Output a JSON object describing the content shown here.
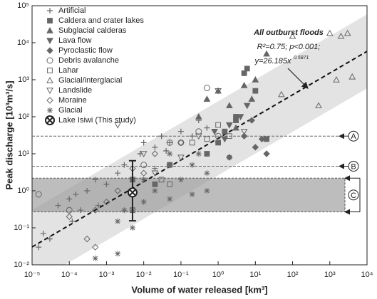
{
  "chart_data": {
    "type": "scatter",
    "log_x": true,
    "log_y": true,
    "x_label": "Volume of water released [km³]",
    "y_label": "Peak discharge [10³m³/s]",
    "xlim": [
      1e-05,
      10000
    ],
    "ylim": [
      0.01,
      100000
    ],
    "xticks": [
      {
        "value": 1e-05,
        "label": "10⁻⁵"
      },
      {
        "value": 0.0001,
        "label": "10⁻⁴"
      },
      {
        "value": 0.001,
        "label": "10⁻³"
      },
      {
        "value": 0.01,
        "label": "10⁻²"
      },
      {
        "value": 0.1,
        "label": "10⁻¹"
      },
      {
        "value": 1,
        "label": "10⁰"
      },
      {
        "value": 10,
        "label": "10¹"
      },
      {
        "value": 100,
        "label": "10²"
      },
      {
        "value": 1000,
        "label": "10³"
      },
      {
        "value": 10000,
        "label": "10⁴"
      }
    ],
    "yticks": [
      {
        "value": 0.01,
        "label": "10⁻²"
      },
      {
        "value": 0.1,
        "label": "10⁻¹"
      },
      {
        "value": 1,
        "label": "10⁰"
      },
      {
        "value": 10,
        "label": "10¹"
      },
      {
        "value": 100,
        "label": "10²"
      },
      {
        "value": 1000,
        "label": "10³"
      },
      {
        "value": 10000,
        "label": "10⁴"
      },
      {
        "value": 100000,
        "label": "10⁵"
      }
    ],
    "fit": {
      "coefficient": 26.185,
      "exponent": 0.5871,
      "band_lower_factor": 0.1,
      "band_upper_factor": 10,
      "title": "All outburst floods",
      "stats": "R²=0.75; p<0.001;",
      "equation": "y=26.185x",
      "equation_exponent": "0.5871"
    },
    "reference_lines": [
      {
        "label": "A",
        "value": 30
      },
      {
        "label": "B",
        "value": 4.6
      }
    ],
    "reference_range": {
      "label": "C",
      "low": 0.27,
      "high": 2.2
    },
    "series": [
      {
        "name": "Artificial",
        "marker": "plus",
        "color": "#666",
        "x": [
          1.5e-05,
          2e-05,
          3e-05,
          5e-05,
          0.0001,
          0.00015,
          0.0002,
          0.0003,
          0.0005,
          0.001,
          0.002,
          0.003,
          0.005,
          0.008,
          0.01,
          0.02,
          0.03,
          0.05,
          0.1,
          0.2,
          0.3,
          0.5,
          0.02,
          0.04,
          0.00012,
          0.0006
        ],
        "values": [
          0.03,
          0.07,
          0.05,
          0.4,
          0.6,
          0.8,
          0.3,
          1,
          2,
          1.5,
          3,
          5,
          2,
          10,
          20,
          15,
          30,
          20,
          40,
          30,
          80,
          50,
          4,
          12,
          0.15,
          0.4
        ]
      },
      {
        "name": "Caldera and crater lakes",
        "marker": "square-filled",
        "color": "#666",
        "x": [
          0.005,
          0.02,
          0.05,
          1,
          1.5,
          3,
          5,
          6,
          10,
          20,
          3,
          0.5
        ],
        "values": [
          2,
          1.5,
          5,
          20,
          40,
          100,
          1500,
          2000,
          500,
          25,
          80,
          10
        ]
      },
      {
        "name": "Subglacial calderas",
        "marker": "triangle-filled",
        "color": "#666",
        "x": [
          0.3,
          0.5,
          1,
          2,
          5,
          8,
          10,
          3,
          20
        ],
        "values": [
          100,
          300,
          500,
          200,
          700,
          300,
          1000,
          50,
          5000
        ]
      },
      {
        "name": "Lava flow",
        "marker": "triangle-down-filled",
        "color": "#666",
        "x": [
          2,
          4,
          0.8,
          6,
          1.5
        ],
        "values": [
          60,
          100,
          40,
          200,
          25
        ]
      },
      {
        "name": "Pyroclastic flow",
        "marker": "diamond-filled",
        "color": "#666",
        "x": [
          5,
          8,
          10,
          15,
          2,
          20
        ],
        "values": [
          30,
          80,
          15,
          25,
          8,
          10
        ]
      },
      {
        "name": "Debris avalanche",
        "marker": "circle-open",
        "color": "#666",
        "x": [
          1.5e-05,
          0.0001,
          0.01,
          0.05,
          0.3,
          0.1,
          0.5,
          1
        ],
        "values": [
          0.8,
          0.3,
          5,
          20,
          40,
          20,
          600,
          30
        ]
      },
      {
        "name": "Lahar",
        "marker": "square-open",
        "color": "#666",
        "x": [
          0.005,
          0.03,
          0.05,
          0.2,
          0.5,
          1,
          2
        ],
        "values": [
          0.3,
          2,
          1.5,
          20,
          25,
          60,
          30
        ]
      },
      {
        "name": "Glacial/interglacial",
        "marker": "triangle-open",
        "color": "#666",
        "x": [
          1000,
          2000,
          3000,
          500,
          1500,
          4000,
          100,
          50
        ],
        "values": [
          18000,
          15000,
          18000,
          200,
          1000,
          1200,
          15000,
          400
        ]
      },
      {
        "name": "Landslide",
        "marker": "triangle-down-open",
        "color": "#666",
        "x": [
          0.002,
          0.01,
          0.02,
          0.1,
          0.3,
          1,
          2,
          5
        ],
        "values": [
          60,
          10,
          3,
          8,
          30,
          500,
          60,
          40
        ]
      },
      {
        "name": "Moraine",
        "marker": "diamond-open",
        "color": "#666",
        "x": [
          0.0003,
          0.0005,
          0.001,
          0.002,
          0.005,
          0.01,
          0.02,
          0.05,
          0.1,
          0.0001,
          0.0005
        ],
        "values": [
          0.05,
          0.3,
          0.5,
          1,
          4,
          3,
          10,
          5,
          20,
          0.2,
          0.03
        ]
      },
      {
        "name": "Glacial",
        "marker": "asterisk",
        "color": "#666",
        "x": [
          0.0005,
          0.002,
          0.003,
          0.005,
          0.01,
          0.02,
          0.05,
          0.1,
          0.2,
          0.3,
          0.5,
          1,
          2,
          0.05,
          0.01,
          0.005,
          0.002,
          0.2,
          0.5
        ],
        "values": [
          0.015,
          0.02,
          0.3,
          0.1,
          0.5,
          1,
          0.6,
          2,
          5,
          10,
          3,
          20,
          8,
          10,
          2,
          0.3,
          0.15,
          0.8,
          1
        ]
      },
      {
        "name": "Lake Isiwi (This study)",
        "marker": "circle-x",
        "color": "#222",
        "x": [
          0.005
        ],
        "values": [
          0.9
        ],
        "error_lower": [
          0.155
        ],
        "error_upper": [
          6.5
        ]
      }
    ]
  }
}
